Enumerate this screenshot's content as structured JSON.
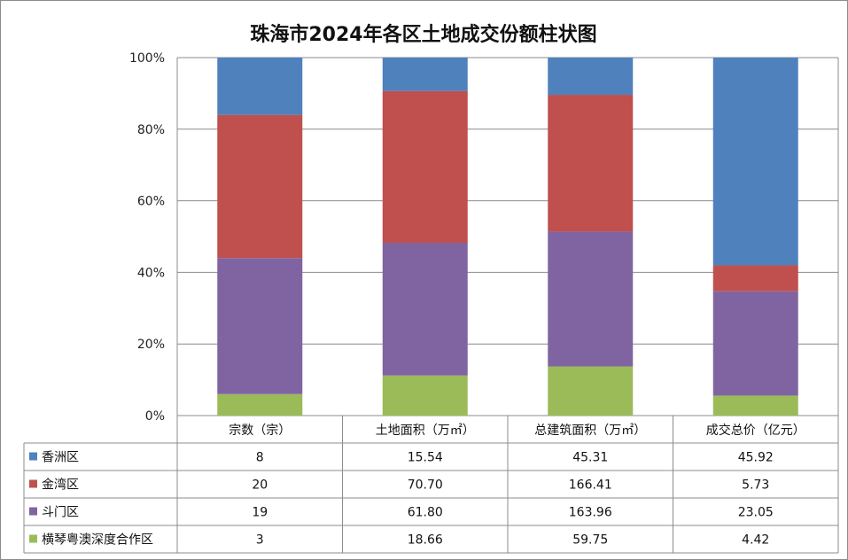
{
  "chart_data": {
    "type": "bar",
    "stacked": "percent",
    "title": "珠海市2024年各区土地成交份额柱状图",
    "categories": [
      "宗数（宗）",
      "土地面积（万㎡）",
      "总建筑面积（万㎡）",
      "成交总价（亿元）"
    ],
    "yticks": [
      "0%",
      "20%",
      "40%",
      "60%",
      "80%",
      "100%"
    ],
    "ylim": [
      0,
      100
    ],
    "grid": true,
    "legend": "data-table-left",
    "series": [
      {
        "name": "横琴粤澳深度合作区",
        "color": "#9BBB59",
        "values": [
          3,
          18.66,
          59.75,
          4.42
        ],
        "labels": [
          "3",
          "18.66",
          "59.75",
          "4.42"
        ]
      },
      {
        "name": "斗门区",
        "color": "#8064A2",
        "values": [
          19,
          61.8,
          163.96,
          23.05
        ],
        "labels": [
          "19",
          "61.80",
          "163.96",
          "23.05"
        ]
      },
      {
        "name": "金湾区",
        "color": "#C0504D",
        "values": [
          20,
          70.7,
          166.41,
          5.73
        ],
        "labels": [
          "20",
          "70.70",
          "166.41",
          "5.73"
        ]
      },
      {
        "name": "香洲区",
        "color": "#4F81BD",
        "values": [
          8,
          15.54,
          45.31,
          45.92
        ],
        "labels": [
          "8",
          "15.54",
          "45.31",
          "45.92"
        ]
      }
    ],
    "table_order": [
      "香洲区",
      "金湾区",
      "斗门区",
      "横琴粤澳深度合作区"
    ]
  }
}
